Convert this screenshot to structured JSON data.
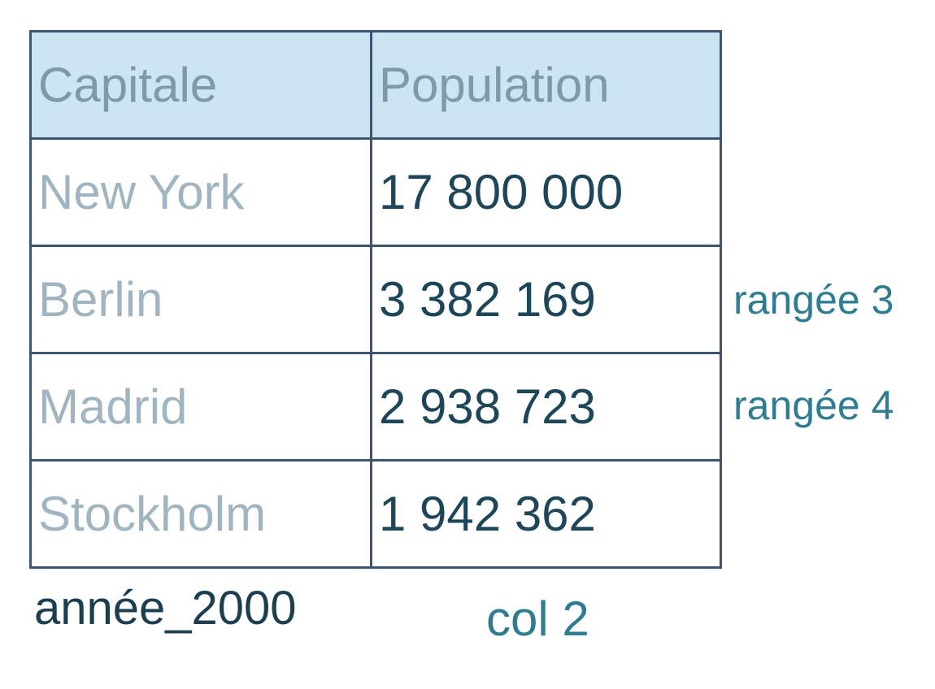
{
  "table": {
    "header": [
      "Capitale",
      "Population"
    ],
    "rows": [
      [
        "New York",
        "17 800 000"
      ],
      [
        "Berlin",
        "3 382 169"
      ],
      [
        "Madrid",
        "2 938 723"
      ],
      [
        "Stockholm",
        "1 942 362"
      ]
    ]
  },
  "side_labels": [
    "rangée 3",
    "rangée 4"
  ],
  "table_name": "année_2000",
  "column_label": "col 2"
}
